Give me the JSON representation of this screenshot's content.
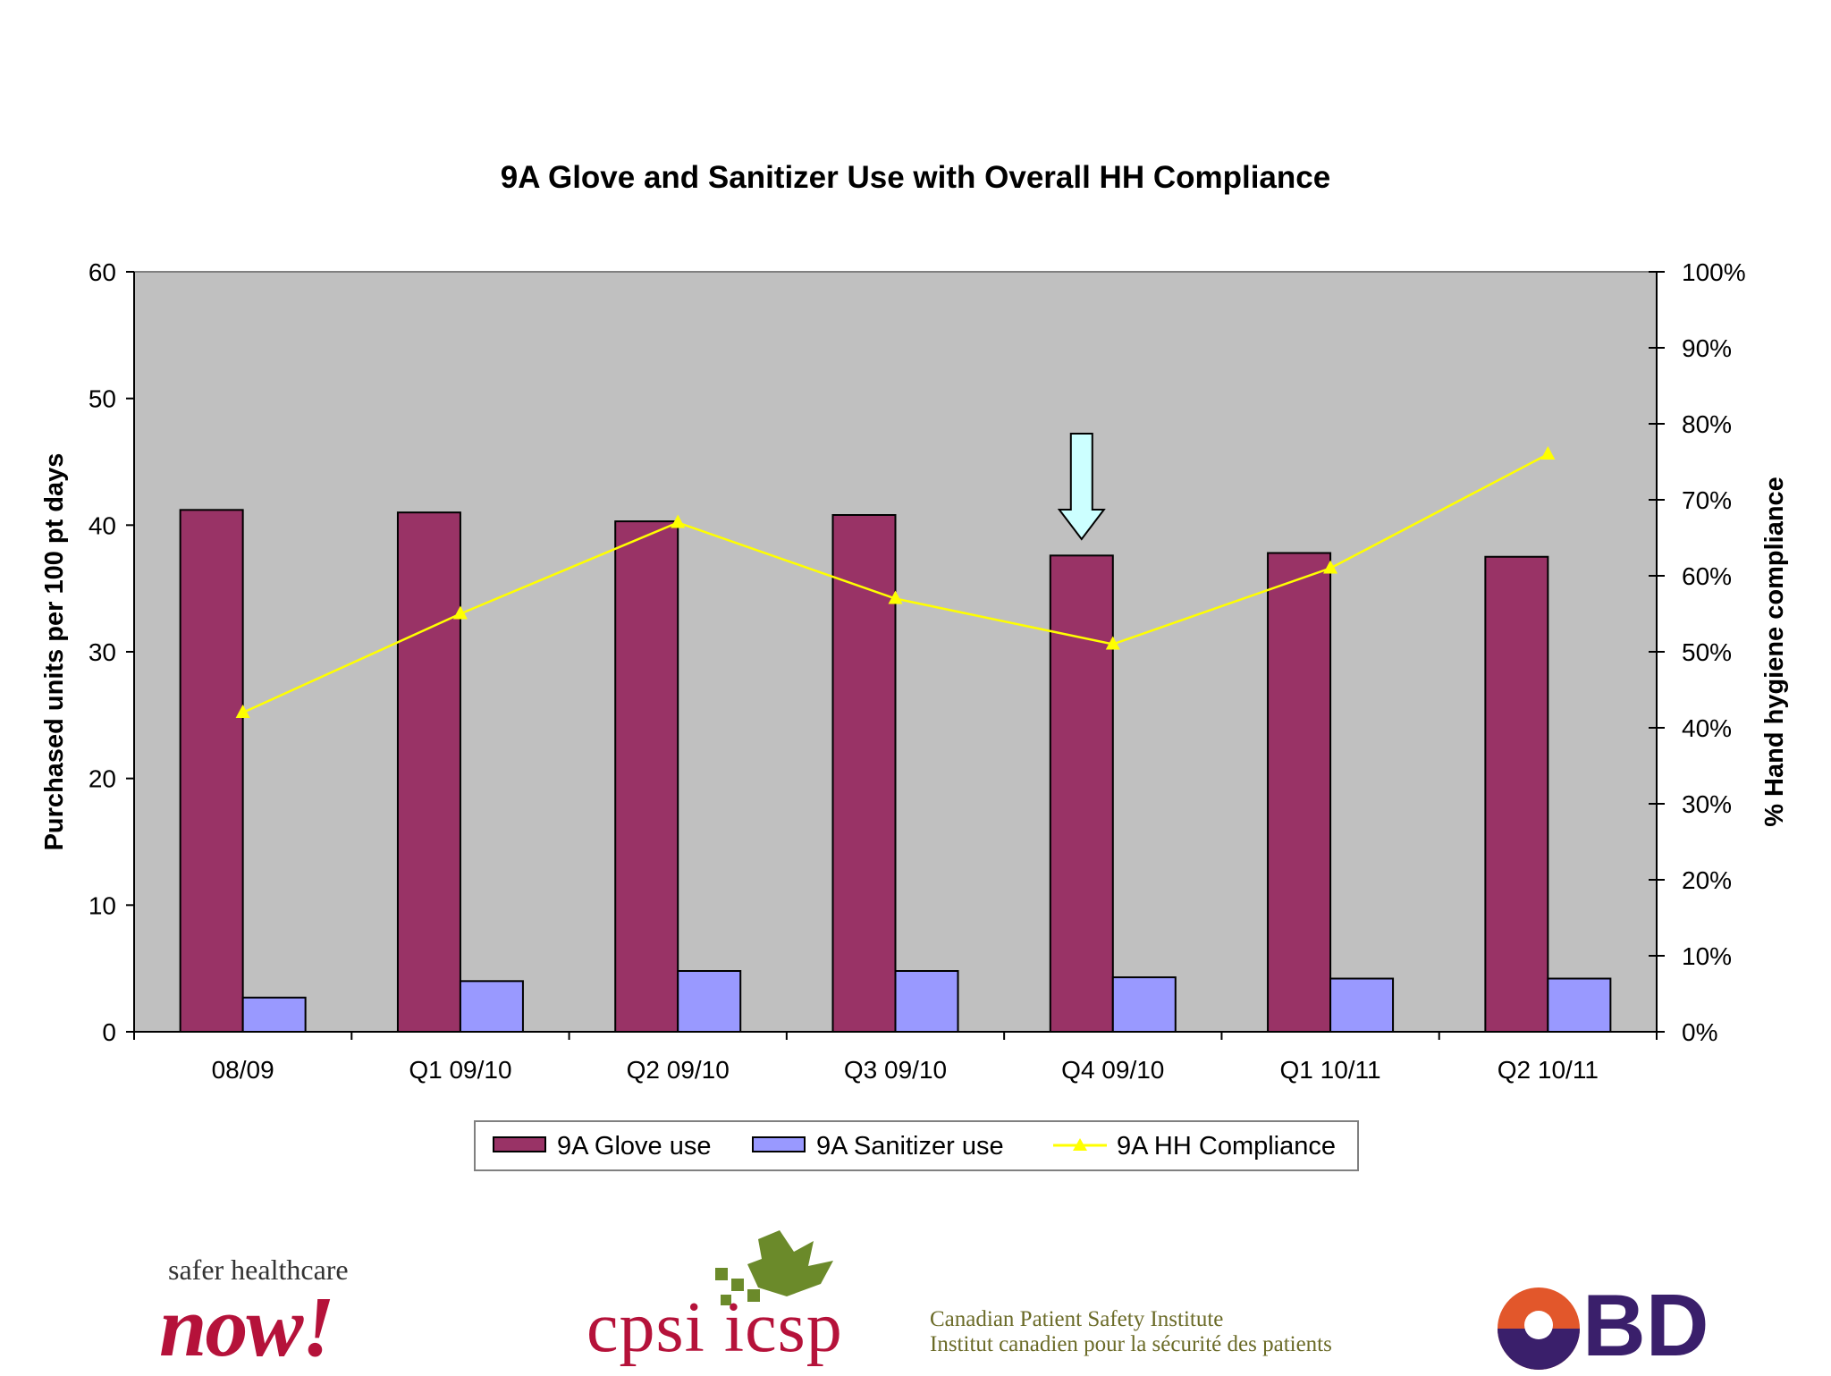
{
  "chart_data": {
    "type": "bar",
    "title": "9A Glove and Sanitizer Use with Overall HH Compliance",
    "categories": [
      "08/09",
      "Q1 09/10",
      "Q2 09/10",
      "Q3 09/10",
      "Q4 09/10",
      "Q1 10/11",
      "Q2 10/11"
    ],
    "series": [
      {
        "name": "9A Glove use",
        "kind": "bar",
        "axis": "left",
        "color": "#993366",
        "values": [
          41.2,
          41.0,
          40.3,
          40.8,
          37.6,
          37.8,
          37.5
        ]
      },
      {
        "name": "9A Sanitizer use",
        "kind": "bar",
        "axis": "left",
        "color": "#9999ff",
        "values": [
          2.7,
          4.0,
          4.8,
          4.8,
          4.3,
          4.2,
          4.2
        ]
      },
      {
        "name": "9A HH Compliance",
        "kind": "line",
        "axis": "right",
        "color": "#ffff00",
        "values": [
          42,
          55,
          67,
          57,
          51,
          61,
          76
        ]
      }
    ],
    "ylabel": "Purchased units per 100 pt days",
    "ylim": [
      0,
      60
    ],
    "yticks": [
      "0",
      "10",
      "20",
      "30",
      "40",
      "50",
      "60"
    ],
    "y2label": "% Hand hygiene compliance",
    "y2lim": [
      0,
      100
    ],
    "y2ticks": [
      "0%",
      "10%",
      "20%",
      "30%",
      "40%",
      "50%",
      "60%",
      "70%",
      "80%",
      "90%",
      "100%"
    ],
    "plot_background": "#c0c0c0",
    "annotation": {
      "type": "down-arrow",
      "category": "Q4 09/10",
      "color": "#ccffff"
    },
    "legend": "bottom"
  },
  "logos": {
    "shn_top": "safer healthcare",
    "shn_now": "now!",
    "cpsi": "cpsi icsp",
    "cpsi_en": "Canadian Patient Safety Institute",
    "cpsi_fr": "Institut canadien pour la sécurité des patients",
    "bd": "BD"
  }
}
